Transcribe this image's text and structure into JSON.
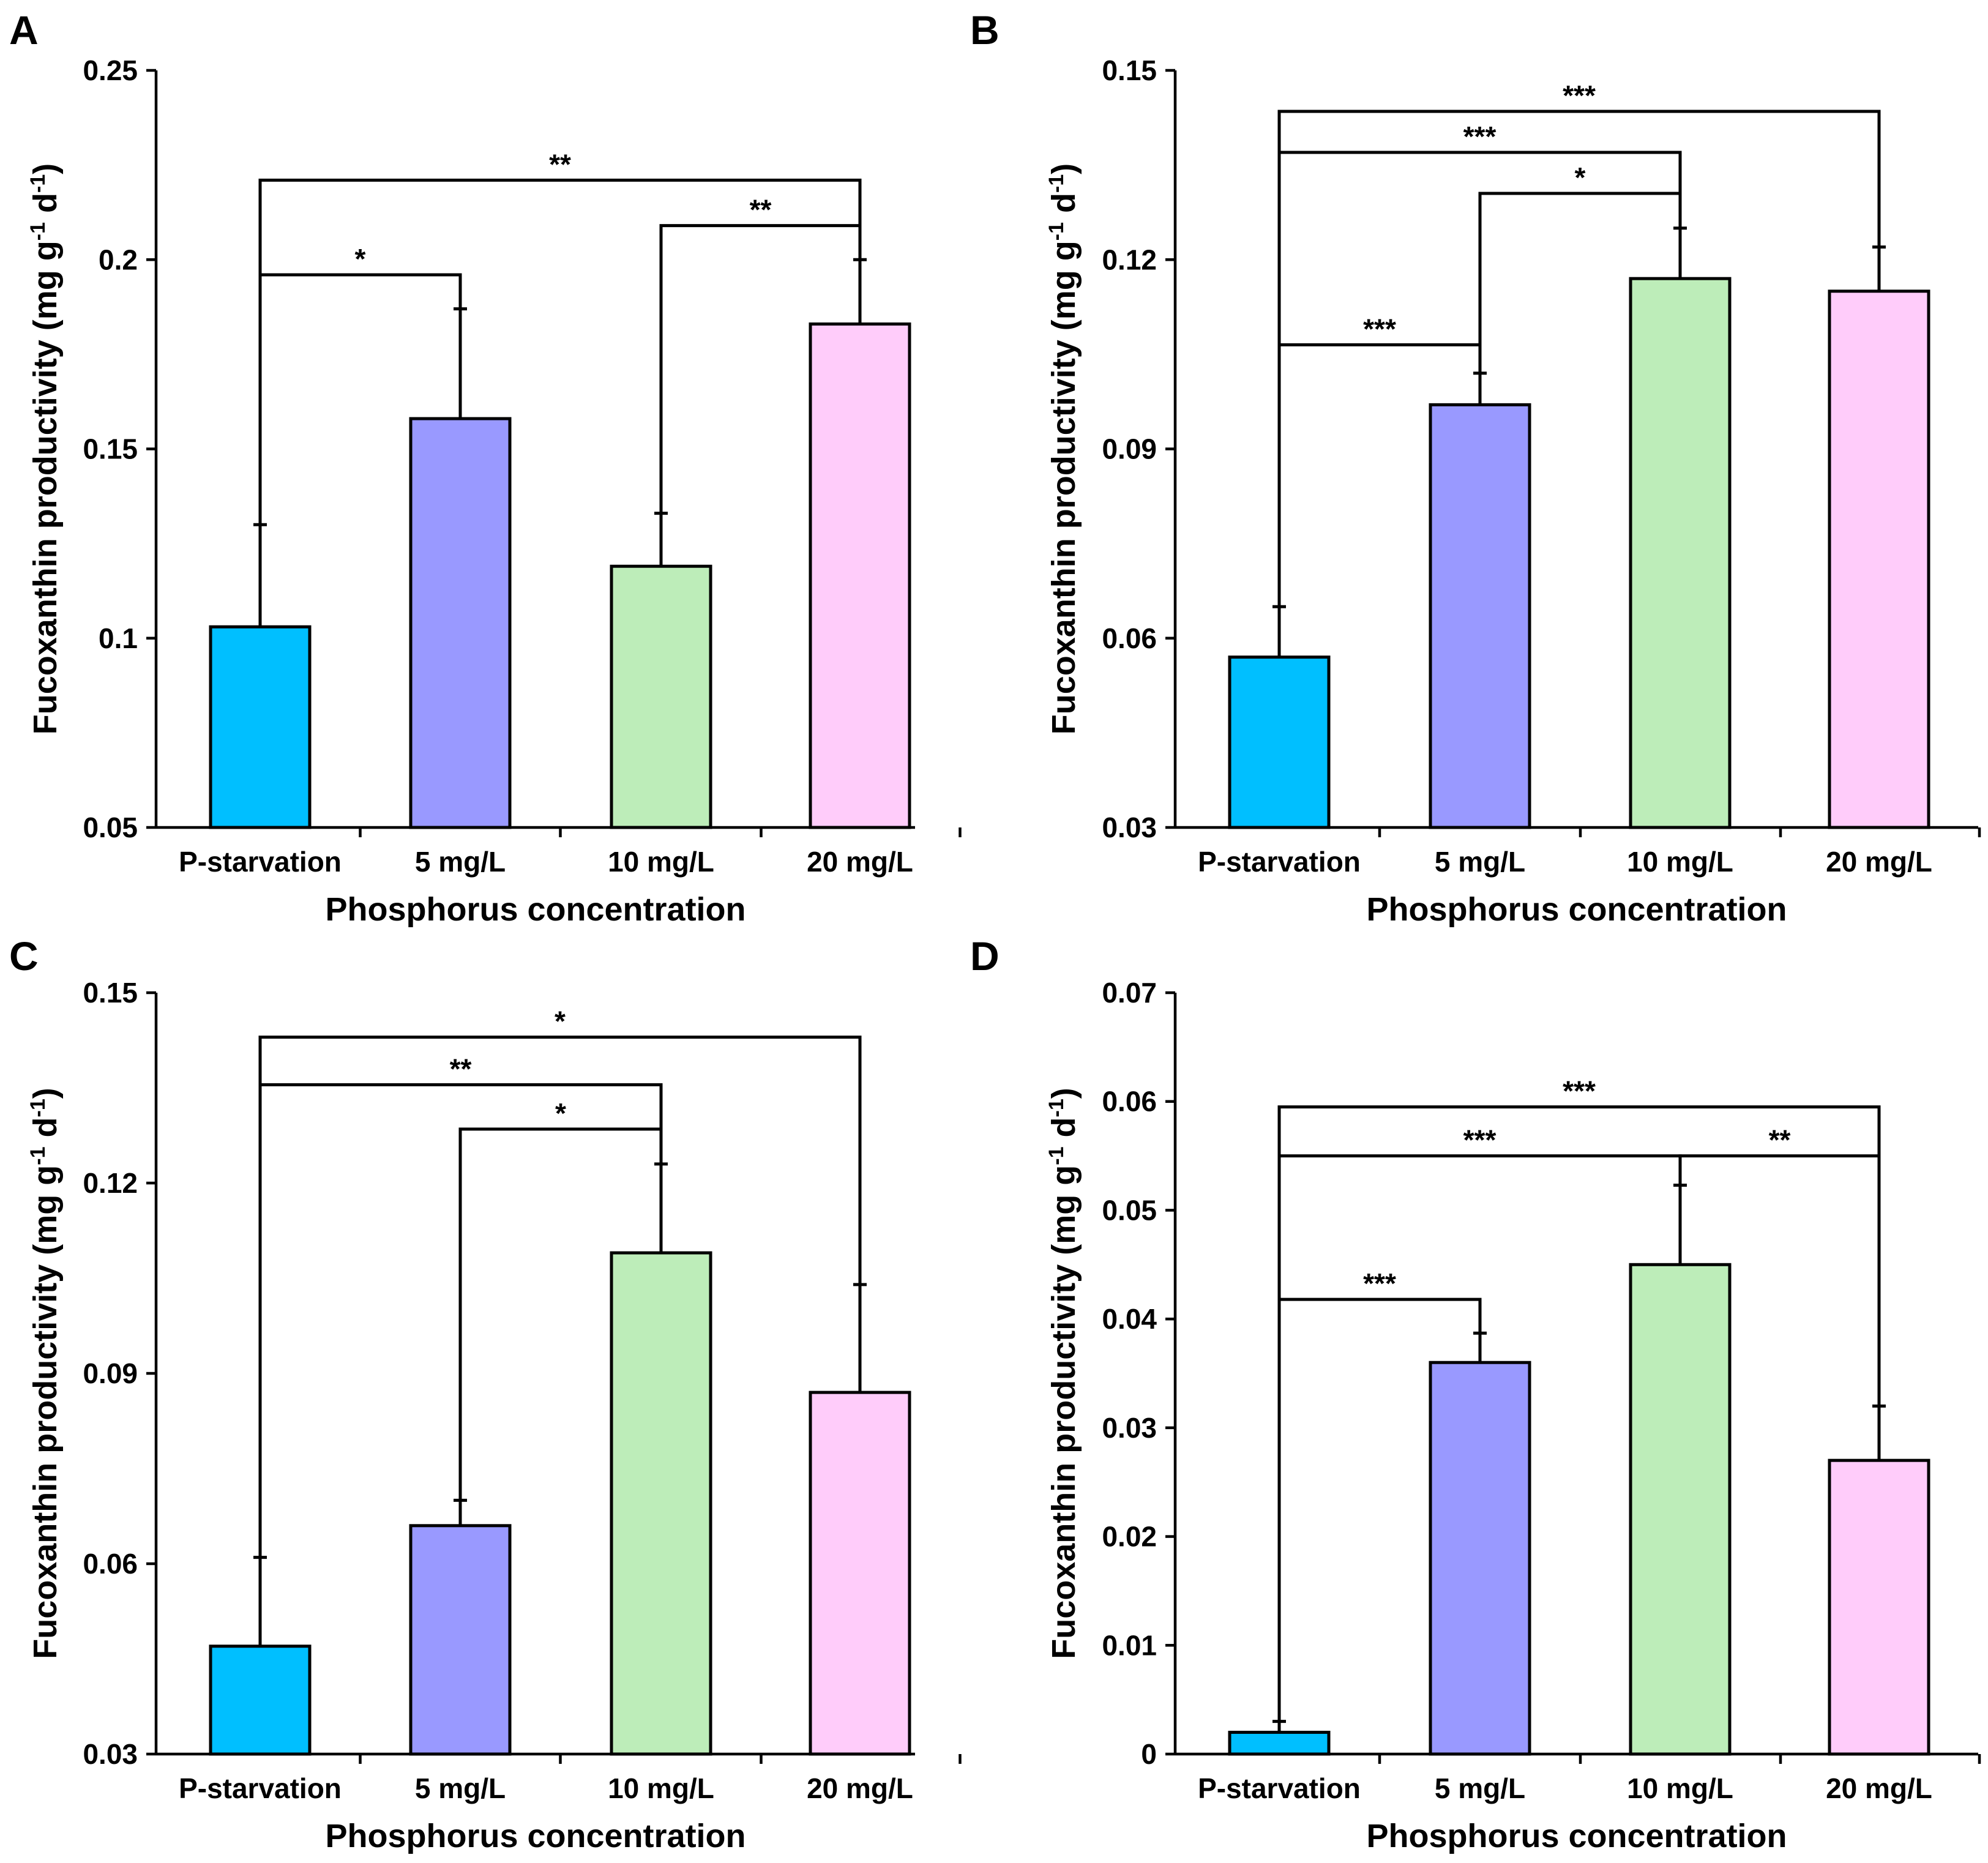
{
  "figure": {
    "x_axis_title": "Phosphorus concentration",
    "y_axis_title_main": "Fucoxanthin productivity (mg g",
    "y_axis_title_exp1": "-1",
    "y_axis_title_mid": " d",
    "y_axis_title_exp2": "-1",
    "y_axis_title_end": ")"
  },
  "colors": {
    "P-starvation": "#00bfff",
    "5 mg/L": "#9999ff",
    "10 mg/L": "#bdedb9",
    "20 mg/L": "#ffccfa"
  },
  "chart_data": [
    {
      "panel": "A",
      "type": "bar",
      "categories": [
        "P-starvation",
        "5 mg/L",
        "10 mg/L",
        "20 mg/L"
      ],
      "values": [
        0.103,
        0.158,
        0.119,
        0.183
      ],
      "errors": [
        0.027,
        0.029,
        0.014,
        0.017
      ],
      "ylim": [
        0.05,
        0.25
      ],
      "yticks": [
        0.05,
        0.1,
        0.15,
        0.2,
        0.25
      ],
      "ytick_labels": [
        "0.05",
        "0.1",
        "0.15",
        "0.2",
        "0.25"
      ],
      "xlabel": "Phosphorus concentration",
      "ylabel": "Fucoxanthin productivity (mg g-1 d-1)",
      "significance": [
        {
          "from": 0,
          "to": 1,
          "label": "*",
          "y": 0.196
        },
        {
          "from": 2,
          "to": 3,
          "label": "**",
          "y": 0.209
        },
        {
          "from": 0,
          "to": 3,
          "label": "**",
          "y": 0.221
        }
      ]
    },
    {
      "panel": "B",
      "type": "bar",
      "categories": [
        "P-starvation",
        "5 mg/L",
        "10 mg/L",
        "20 mg/L"
      ],
      "values": [
        0.057,
        0.097,
        0.117,
        0.115
      ],
      "errors": [
        0.008,
        0.005,
        0.008,
        0.007
      ],
      "ylim": [
        0.03,
        0.15
      ],
      "yticks": [
        0.03,
        0.06,
        0.09,
        0.12,
        0.15
      ],
      "ytick_labels": [
        "0.03",
        "0.06",
        "0.09",
        "0.12",
        "0.15"
      ],
      "xlabel": "Phosphorus concentration",
      "ylabel": "Fucoxanthin productivity (mg g-1 d-1)",
      "significance": [
        {
          "from": 0,
          "to": 1,
          "label": "***",
          "y": 0.1065
        },
        {
          "from": 1,
          "to": 2,
          "label": "*",
          "y": 0.1305
        },
        {
          "from": 0,
          "to": 2,
          "label": "***",
          "y": 0.137
        },
        {
          "from": 0,
          "to": 3,
          "label": "***",
          "y": 0.1435
        }
      ]
    },
    {
      "panel": "C",
      "type": "bar",
      "categories": [
        "P-starvation",
        "5 mg/L",
        "10 mg/L",
        "20 mg/L"
      ],
      "values": [
        0.047,
        0.066,
        0.109,
        0.087
      ],
      "errors": [
        0.014,
        0.004,
        0.014,
        0.017
      ],
      "ylim": [
        0.03,
        0.15
      ],
      "yticks": [
        0.03,
        0.06,
        0.09,
        0.12,
        0.15
      ],
      "ytick_labels": [
        "0.03",
        "0.06",
        "0.09",
        "0.12",
        "0.15"
      ],
      "xlabel": "Phosphorus concentration",
      "ylabel": "Fucoxanthin productivity (mg g-1 d-1)",
      "significance": [
        {
          "from": 1,
          "to": 2,
          "label": "*",
          "y": 0.1285
        },
        {
          "from": 0,
          "to": 2,
          "label": "**",
          "y": 0.1355
        },
        {
          "from": 0,
          "to": 3,
          "label": "*",
          "y": 0.143
        }
      ]
    },
    {
      "panel": "D",
      "type": "bar",
      "categories": [
        "P-starvation",
        "5 mg/L",
        "10 mg/L",
        "20 mg/L"
      ],
      "values": [
        0.002,
        0.036,
        0.045,
        0.027
      ],
      "errors": [
        0.001,
        0.0027,
        0.0073,
        0.005
      ],
      "ylim": [
        0,
        0.07
      ],
      "yticks": [
        0,
        0.01,
        0.02,
        0.03,
        0.04,
        0.05,
        0.06,
        0.07
      ],
      "ytick_labels": [
        "0",
        "0.01",
        "0.02",
        "0.03",
        "0.04",
        "0.05",
        "0.06",
        "0.07"
      ],
      "xlabel": "Phosphorus concentration",
      "ylabel": "Fucoxanthin productivity (mg g-1 d-1)",
      "significance": [
        {
          "from": 0,
          "to": 1,
          "label": "***",
          "y": 0.0418
        },
        {
          "from": 0,
          "to": 2,
          "label": "***",
          "y": 0.055
        },
        {
          "from": 2,
          "to": 3,
          "label": "**",
          "y": 0.055
        },
        {
          "from": 0,
          "to": 3,
          "label": "***",
          "y": 0.0595
        }
      ]
    }
  ]
}
